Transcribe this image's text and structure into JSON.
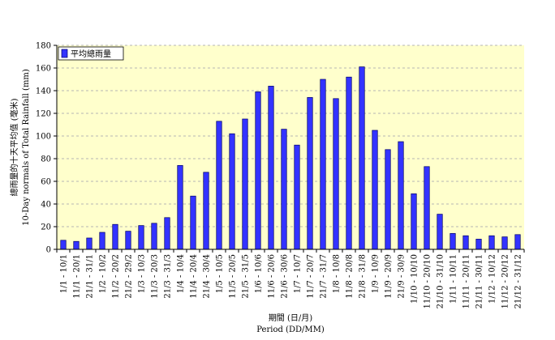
{
  "chart_data": {
    "type": "bar",
    "ylim": [
      0,
      180
    ],
    "yticks": [
      0,
      20,
      40,
      60,
      80,
      100,
      120,
      140,
      160,
      180
    ],
    "grid": true,
    "legend_position": "top-left",
    "xlabel": "期間 (日/月)",
    "xlabel_en": "Period (DD/MM)",
    "ylabel": "總雨量的十天平均值 (毫米)",
    "ylabel_en": "10-Day normals of Total Rainfall (mm)",
    "series": [
      {
        "name": "平均總雨量",
        "color": "#3333ff"
      }
    ],
    "categories": [
      "1/1 - 10/1",
      "11/1 - 20/1",
      "21/1 - 31/1",
      "1/2 - 10/2",
      "11/2 - 20/2",
      "21/2 - 29/2",
      "1/3 - 10/3",
      "11/3 - 20/3",
      "21/3 - 31/3",
      "1/4 - 10/4",
      "11/4 - 20/4",
      "21/4 - 30/4",
      "1/5 - 10/5",
      "11/5 - 20/5",
      "21/5 - 31/5",
      "1/6 - 10/6",
      "11/6 - 20/6",
      "21/6 - 30/6",
      "1/7 - 10/7",
      "11/7 - 20/7",
      "21/7 - 31/7",
      "1/8 - 10/8",
      "11/8 - 20/8",
      "21/8 - 31/8",
      "1/9 - 10/9",
      "11/9 - 20/9",
      "21/9 - 30/9",
      "1/10 - 10/10",
      "11/10 - 20/10",
      "21/10 - 31/10",
      "1/11 - 10/11",
      "11/11 - 20/11",
      "21/11 - 30/11",
      "1/12 - 10/12",
      "11/12 - 20/12",
      "21/12 - 31/12"
    ],
    "values": [
      8,
      7,
      10,
      15,
      22,
      16,
      21,
      23,
      28,
      74,
      47,
      68,
      113,
      102,
      115,
      139,
      144,
      106,
      92,
      134,
      150,
      133,
      152,
      161,
      105,
      88,
      95,
      49,
      73,
      31,
      14,
      12,
      9,
      12,
      11,
      13
    ]
  },
  "colors": {
    "plot_background": "#ffffcc",
    "bar_fill": "#3333ff",
    "bar_stroke": "#000066",
    "grid": "#b5b5b5"
  }
}
